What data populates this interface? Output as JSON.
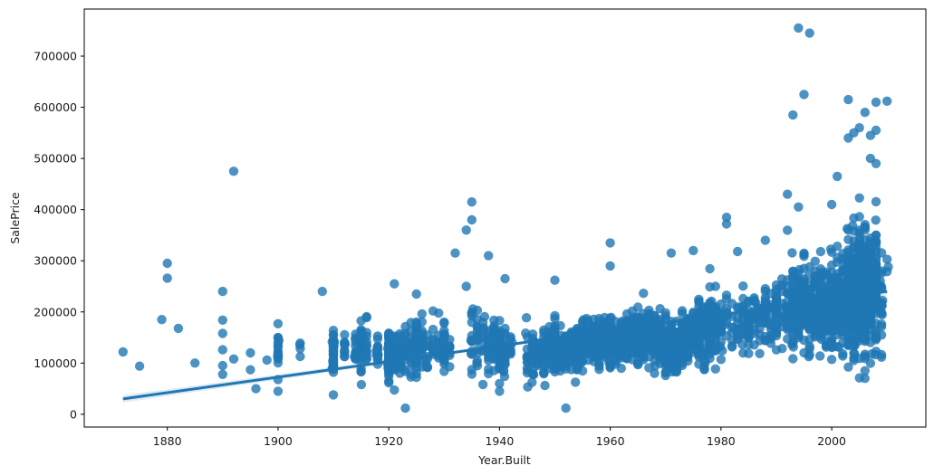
{
  "chart_data": {
    "type": "scatter",
    "title": "",
    "xlabel": "Year.Built",
    "ylabel": "SalePrice",
    "xlim": [
      1865,
      2017
    ],
    "ylim": [
      -25000,
      792000
    ],
    "grid": false,
    "legend": null,
    "xticks": [
      1880,
      1900,
      1920,
      1940,
      1960,
      1980,
      2000
    ],
    "yticks": [
      0,
      100000,
      200000,
      300000,
      400000,
      500000,
      600000,
      700000
    ],
    "marker_color": "#1f77b4",
    "marker_alpha": 0.8,
    "regression": {
      "x": [
        1872,
        2010
      ],
      "y": [
        30000,
        240000
      ],
      "color": "#1f77b4",
      "ci_color": "#1f77b4"
    },
    "outliers": [
      [
        1872,
        122000
      ],
      [
        1875,
        94000
      ],
      [
        1879,
        185000
      ],
      [
        1880,
        295000
      ],
      [
        1880,
        266000
      ],
      [
        1882,
        168000
      ],
      [
        1885,
        100000
      ],
      [
        1890,
        240000
      ],
      [
        1890,
        184000
      ],
      [
        1890,
        158000
      ],
      [
        1890,
        126000
      ],
      [
        1890,
        95000
      ],
      [
        1890,
        78000
      ],
      [
        1892,
        475000
      ],
      [
        1892,
        108000
      ],
      [
        1895,
        120000
      ],
      [
        1895,
        87000
      ],
      [
        1896,
        50000
      ],
      [
        1898,
        106000
      ],
      [
        1900,
        45000
      ],
      [
        1908,
        240000
      ],
      [
        1910,
        38000
      ],
      [
        1921,
        255000
      ],
      [
        1923,
        12000
      ],
      [
        1925,
        235000
      ],
      [
        1932,
        315000
      ],
      [
        1934,
        360000
      ],
      [
        1935,
        415000
      ],
      [
        1935,
        380000
      ],
      [
        1934,
        250000
      ],
      [
        1938,
        310000
      ],
      [
        1940,
        60000
      ],
      [
        1940,
        45000
      ],
      [
        1941,
        265000
      ],
      [
        1952,
        12000
      ],
      [
        1950,
        262000
      ],
      [
        1960,
        335000
      ],
      [
        1960,
        290000
      ],
      [
        1971,
        315000
      ],
      [
        1975,
        320000
      ],
      [
        1981,
        385000
      ],
      [
        1981,
        372000
      ],
      [
        1983,
        318000
      ],
      [
        1988,
        340000
      ],
      [
        1992,
        430000
      ],
      [
        1993,
        585000
      ],
      [
        1994,
        755000
      ],
      [
        1996,
        745000
      ],
      [
        1995,
        625000
      ],
      [
        1994,
        405000
      ],
      [
        2001,
        465000
      ],
      [
        2003,
        615000
      ],
      [
        2003,
        540000
      ],
      [
        2004,
        550000
      ],
      [
        2005,
        560000
      ],
      [
        2006,
        590000
      ],
      [
        2007,
        545000
      ],
      [
        2008,
        610000
      ],
      [
        2008,
        555000
      ],
      [
        2010,
        612000
      ],
      [
        2006,
        85000
      ],
      [
        2002,
        118000
      ],
      [
        2000,
        410000
      ],
      [
        2007,
        500000
      ],
      [
        2008,
        490000
      ]
    ],
    "clusters": [
      {
        "x": 1900,
        "n": 20,
        "mean": 125000,
        "sd": 25000
      },
      {
        "x": 1904,
        "n": 4,
        "mean": 130000,
        "sd": 25000
      },
      {
        "x": 1910,
        "n": 45,
        "mean": 125000,
        "sd": 30000
      },
      {
        "x": 1912,
        "n": 10,
        "mean": 125000,
        "sd": 25000
      },
      {
        "x": 1914,
        "n": 14,
        "mean": 125000,
        "sd": 25000
      },
      {
        "x": 1915,
        "n": 30,
        "mean": 130000,
        "sd": 30000
      },
      {
        "x": 1916,
        "n": 12,
        "mean": 135000,
        "sd": 30000
      },
      {
        "x": 1918,
        "n": 15,
        "mean": 125000,
        "sd": 30000
      },
      {
        "x": 1920,
        "n": 60,
        "mean": 115000,
        "sd": 35000
      },
      {
        "x": 1921,
        "n": 20,
        "mean": 130000,
        "sd": 35000
      },
      {
        "x": 1922,
        "n": 25,
        "mean": 120000,
        "sd": 35000
      },
      {
        "x": 1923,
        "n": 16,
        "mean": 125000,
        "sd": 30000
      },
      {
        "x": 1924,
        "n": 18,
        "mean": 125000,
        "sd": 30000
      },
      {
        "x": 1925,
        "n": 35,
        "mean": 130000,
        "sd": 35000
      },
      {
        "x": 1926,
        "n": 18,
        "mean": 135000,
        "sd": 35000
      },
      {
        "x": 1927,
        "n": 10,
        "mean": 130000,
        "sd": 30000
      },
      {
        "x": 1928,
        "n": 12,
        "mean": 135000,
        "sd": 35000
      },
      {
        "x": 1929,
        "n": 10,
        "mean": 140000,
        "sd": 35000
      },
      {
        "x": 1930,
        "n": 25,
        "mean": 125000,
        "sd": 35000
      },
      {
        "x": 1931,
        "n": 8,
        "mean": 135000,
        "sd": 30000
      },
      {
        "x": 1935,
        "n": 14,
        "mean": 145000,
        "sd": 45000
      },
      {
        "x": 1936,
        "n": 15,
        "mean": 140000,
        "sd": 40000
      },
      {
        "x": 1937,
        "n": 10,
        "mean": 140000,
        "sd": 35000
      },
      {
        "x": 1938,
        "n": 14,
        "mean": 135000,
        "sd": 35000
      },
      {
        "x": 1939,
        "n": 18,
        "mean": 135000,
        "sd": 35000
      },
      {
        "x": 1940,
        "n": 40,
        "mean": 125000,
        "sd": 35000
      },
      {
        "x": 1941,
        "n": 22,
        "mean": 135000,
        "sd": 35000
      },
      {
        "x": 1942,
        "n": 8,
        "mean": 130000,
        "sd": 30000
      },
      {
        "x": 1945,
        "n": 14,
        "mean": 110000,
        "sd": 30000
      },
      {
        "x": 1946,
        "n": 22,
        "mean": 115000,
        "sd": 30000
      },
      {
        "x": 1947,
        "n": 12,
        "mean": 120000,
        "sd": 30000
      },
      {
        "x": 1948,
        "n": 30,
        "mean": 120000,
        "sd": 30000
      },
      {
        "x": 1949,
        "n": 28,
        "mean": 125000,
        "sd": 30000
      },
      {
        "x": 1950,
        "n": 45,
        "mean": 125000,
        "sd": 30000
      },
      {
        "x": 1951,
        "n": 25,
        "mean": 120000,
        "sd": 25000
      },
      {
        "x": 1952,
        "n": 25,
        "mean": 125000,
        "sd": 25000
      },
      {
        "x": 1953,
        "n": 30,
        "mean": 130000,
        "sd": 25000
      },
      {
        "x": 1954,
        "n": 45,
        "mean": 135000,
        "sd": 25000
      },
      {
        "x": 1955,
        "n": 40,
        "mean": 135000,
        "sd": 25000
      },
      {
        "x": 1956,
        "n": 45,
        "mean": 140000,
        "sd": 25000
      },
      {
        "x": 1957,
        "n": 40,
        "mean": 140000,
        "sd": 28000
      },
      {
        "x": 1958,
        "n": 48,
        "mean": 140000,
        "sd": 30000
      },
      {
        "x": 1959,
        "n": 45,
        "mean": 145000,
        "sd": 30000
      },
      {
        "x": 1960,
        "n": 50,
        "mean": 145000,
        "sd": 35000
      },
      {
        "x": 1961,
        "n": 30,
        "mean": 145000,
        "sd": 30000
      },
      {
        "x": 1962,
        "n": 40,
        "mean": 145000,
        "sd": 30000
      },
      {
        "x": 1963,
        "n": 45,
        "mean": 150000,
        "sd": 30000
      },
      {
        "x": 1964,
        "n": 40,
        "mean": 150000,
        "sd": 30000
      },
      {
        "x": 1965,
        "n": 45,
        "mean": 155000,
        "sd": 35000
      },
      {
        "x": 1966,
        "n": 48,
        "mean": 155000,
        "sd": 35000
      },
      {
        "x": 1967,
        "n": 40,
        "mean": 155000,
        "sd": 35000
      },
      {
        "x": 1968,
        "n": 42,
        "mean": 150000,
        "sd": 35000
      },
      {
        "x": 1969,
        "n": 35,
        "mean": 150000,
        "sd": 35000
      },
      {
        "x": 1970,
        "n": 60,
        "mean": 135000,
        "sd": 35000
      },
      {
        "x": 1971,
        "n": 45,
        "mean": 130000,
        "sd": 35000
      },
      {
        "x": 1972,
        "n": 48,
        "mean": 130000,
        "sd": 30000
      },
      {
        "x": 1973,
        "n": 35,
        "mean": 140000,
        "sd": 35000
      },
      {
        "x": 1974,
        "n": 30,
        "mean": 150000,
        "sd": 35000
      },
      {
        "x": 1975,
        "n": 35,
        "mean": 160000,
        "sd": 40000
      },
      {
        "x": 1976,
        "n": 45,
        "mean": 165000,
        "sd": 40000
      },
      {
        "x": 1977,
        "n": 50,
        "mean": 165000,
        "sd": 40000
      },
      {
        "x": 1978,
        "n": 40,
        "mean": 170000,
        "sd": 40000
      },
      {
        "x": 1979,
        "n": 25,
        "mean": 175000,
        "sd": 40000
      },
      {
        "x": 1980,
        "n": 20,
        "mean": 175000,
        "sd": 40000
      },
      {
        "x": 1981,
        "n": 10,
        "mean": 185000,
        "sd": 40000
      },
      {
        "x": 1982,
        "n": 8,
        "mean": 180000,
        "sd": 35000
      },
      {
        "x": 1983,
        "n": 10,
        "mean": 175000,
        "sd": 35000
      },
      {
        "x": 1984,
        "n": 18,
        "mean": 175000,
        "sd": 35000
      },
      {
        "x": 1985,
        "n": 20,
        "mean": 175000,
        "sd": 35000
      },
      {
        "x": 1986,
        "n": 15,
        "mean": 190000,
        "sd": 40000
      },
      {
        "x": 1987,
        "n": 12,
        "mean": 190000,
        "sd": 40000
      },
      {
        "x": 1988,
        "n": 20,
        "mean": 195000,
        "sd": 45000
      },
      {
        "x": 1989,
        "n": 14,
        "mean": 190000,
        "sd": 40000
      },
      {
        "x": 1990,
        "n": 25,
        "mean": 200000,
        "sd": 45000
      },
      {
        "x": 1991,
        "n": 12,
        "mean": 200000,
        "sd": 45000
      },
      {
        "x": 1992,
        "n": 20,
        "mean": 205000,
        "sd": 55000
      },
      {
        "x": 1993,
        "n": 35,
        "mean": 210000,
        "sd": 55000
      },
      {
        "x": 1994,
        "n": 40,
        "mean": 210000,
        "sd": 55000
      },
      {
        "x": 1995,
        "n": 35,
        "mean": 210000,
        "sd": 55000
      },
      {
        "x": 1996,
        "n": 40,
        "mean": 205000,
        "sd": 50000
      },
      {
        "x": 1997,
        "n": 35,
        "mean": 205000,
        "sd": 50000
      },
      {
        "x": 1998,
        "n": 55,
        "mean": 210000,
        "sd": 50000
      },
      {
        "x": 1999,
        "n": 55,
        "mean": 210000,
        "sd": 50000
      },
      {
        "x": 2000,
        "n": 60,
        "mean": 215000,
        "sd": 55000
      },
      {
        "x": 2001,
        "n": 45,
        "mean": 215000,
        "sd": 55000
      },
      {
        "x": 2002,
        "n": 60,
        "mean": 225000,
        "sd": 60000
      },
      {
        "x": 2003,
        "n": 90,
        "mean": 235000,
        "sd": 70000
      },
      {
        "x": 2004,
        "n": 100,
        "mean": 235000,
        "sd": 75000
      },
      {
        "x": 2005,
        "n": 140,
        "mean": 240000,
        "sd": 75000
      },
      {
        "x": 2006,
        "n": 135,
        "mean": 240000,
        "sd": 80000
      },
      {
        "x": 2007,
        "n": 100,
        "mean": 240000,
        "sd": 75000
      },
      {
        "x": 2008,
        "n": 60,
        "mean": 245000,
        "sd": 75000
      },
      {
        "x": 2009,
        "n": 20,
        "mean": 235000,
        "sd": 65000
      },
      {
        "x": 2010,
        "n": 3,
        "mean": 290000,
        "sd": 60000
      }
    ]
  }
}
